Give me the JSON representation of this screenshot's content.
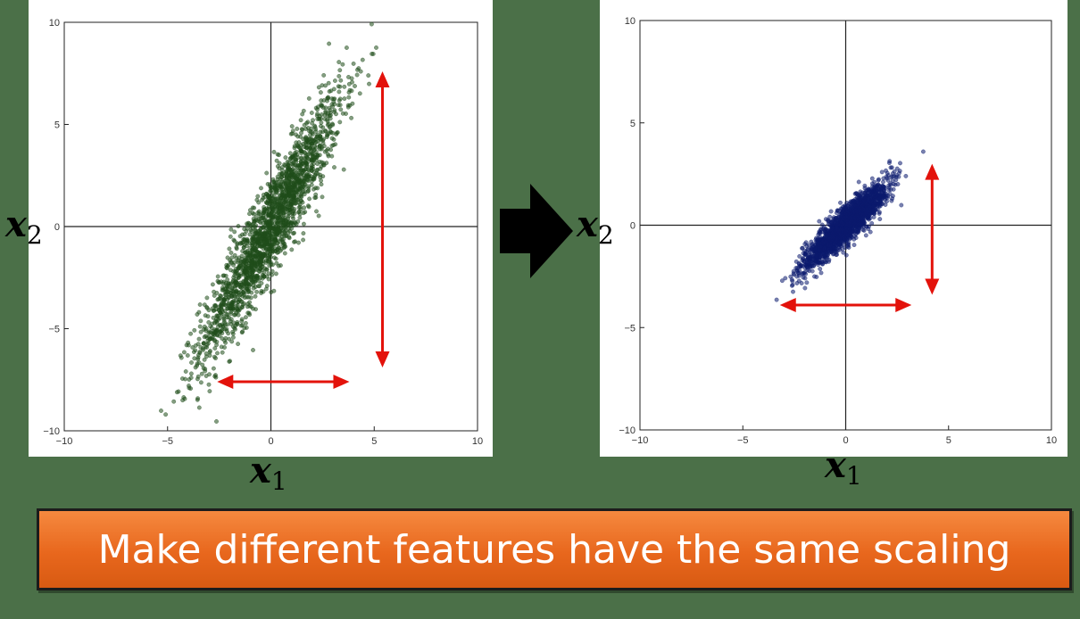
{
  "chart_data": [
    {
      "type": "scatter",
      "title": "",
      "xlabel": "x1",
      "ylabel": "x2",
      "xlim": [
        -10,
        10
      ],
      "ylim": [
        -10,
        10
      ],
      "xticks": [
        -10,
        -5,
        0,
        5,
        10
      ],
      "yticks": [
        -10,
        -5,
        0,
        5,
        10
      ],
      "grid": false,
      "marker_color": "#1f4d1a",
      "distribution": {
        "center": [
          0,
          0
        ],
        "x_std": 1.7,
        "y_std": 3.2,
        "correlation": 0.93,
        "n_points": 2000
      },
      "annotations": [
        {
          "kind": "double-arrow",
          "direction": "horizontal",
          "from": [
            -2.6,
            -7.6
          ],
          "to": [
            3.8,
            -7.6
          ],
          "color": "#e3120b"
        },
        {
          "kind": "double-arrow",
          "direction": "vertical",
          "from": [
            5.4,
            7.6
          ],
          "to": [
            5.4,
            -6.9
          ],
          "color": "#e3120b"
        }
      ]
    },
    {
      "type": "scatter",
      "title": "",
      "xlabel": "x1",
      "ylabel": "x2",
      "xlim": [
        -10,
        10
      ],
      "ylim": [
        -10,
        10
      ],
      "xticks": [
        -10,
        -5,
        0,
        5,
        10
      ],
      "yticks": [
        -10,
        -5,
        0,
        5,
        10
      ],
      "grid": false,
      "marker_color": "#0b1a6e",
      "distribution": {
        "center": [
          0,
          0
        ],
        "x_std": 1.0,
        "y_std": 1.0,
        "correlation": 0.9,
        "n_points": 2000
      },
      "annotations": [
        {
          "kind": "double-arrow",
          "direction": "horizontal",
          "from": [
            -3.2,
            -3.9
          ],
          "to": [
            3.2,
            -3.9
          ],
          "color": "#e3120b"
        },
        {
          "kind": "double-arrow",
          "direction": "vertical",
          "from": [
            4.2,
            3.0
          ],
          "to": [
            4.2,
            -3.4
          ],
          "color": "#e3120b"
        }
      ]
    }
  ],
  "labels": {
    "y_var": "x",
    "y_sub": "2",
    "x_var": "x",
    "x_sub": "1"
  },
  "transition_arrow": {
    "icon": "right-arrow-icon",
    "color": "#000000"
  },
  "caption": {
    "text": "Make different features have the same scaling",
    "bg": "#e8671d"
  }
}
